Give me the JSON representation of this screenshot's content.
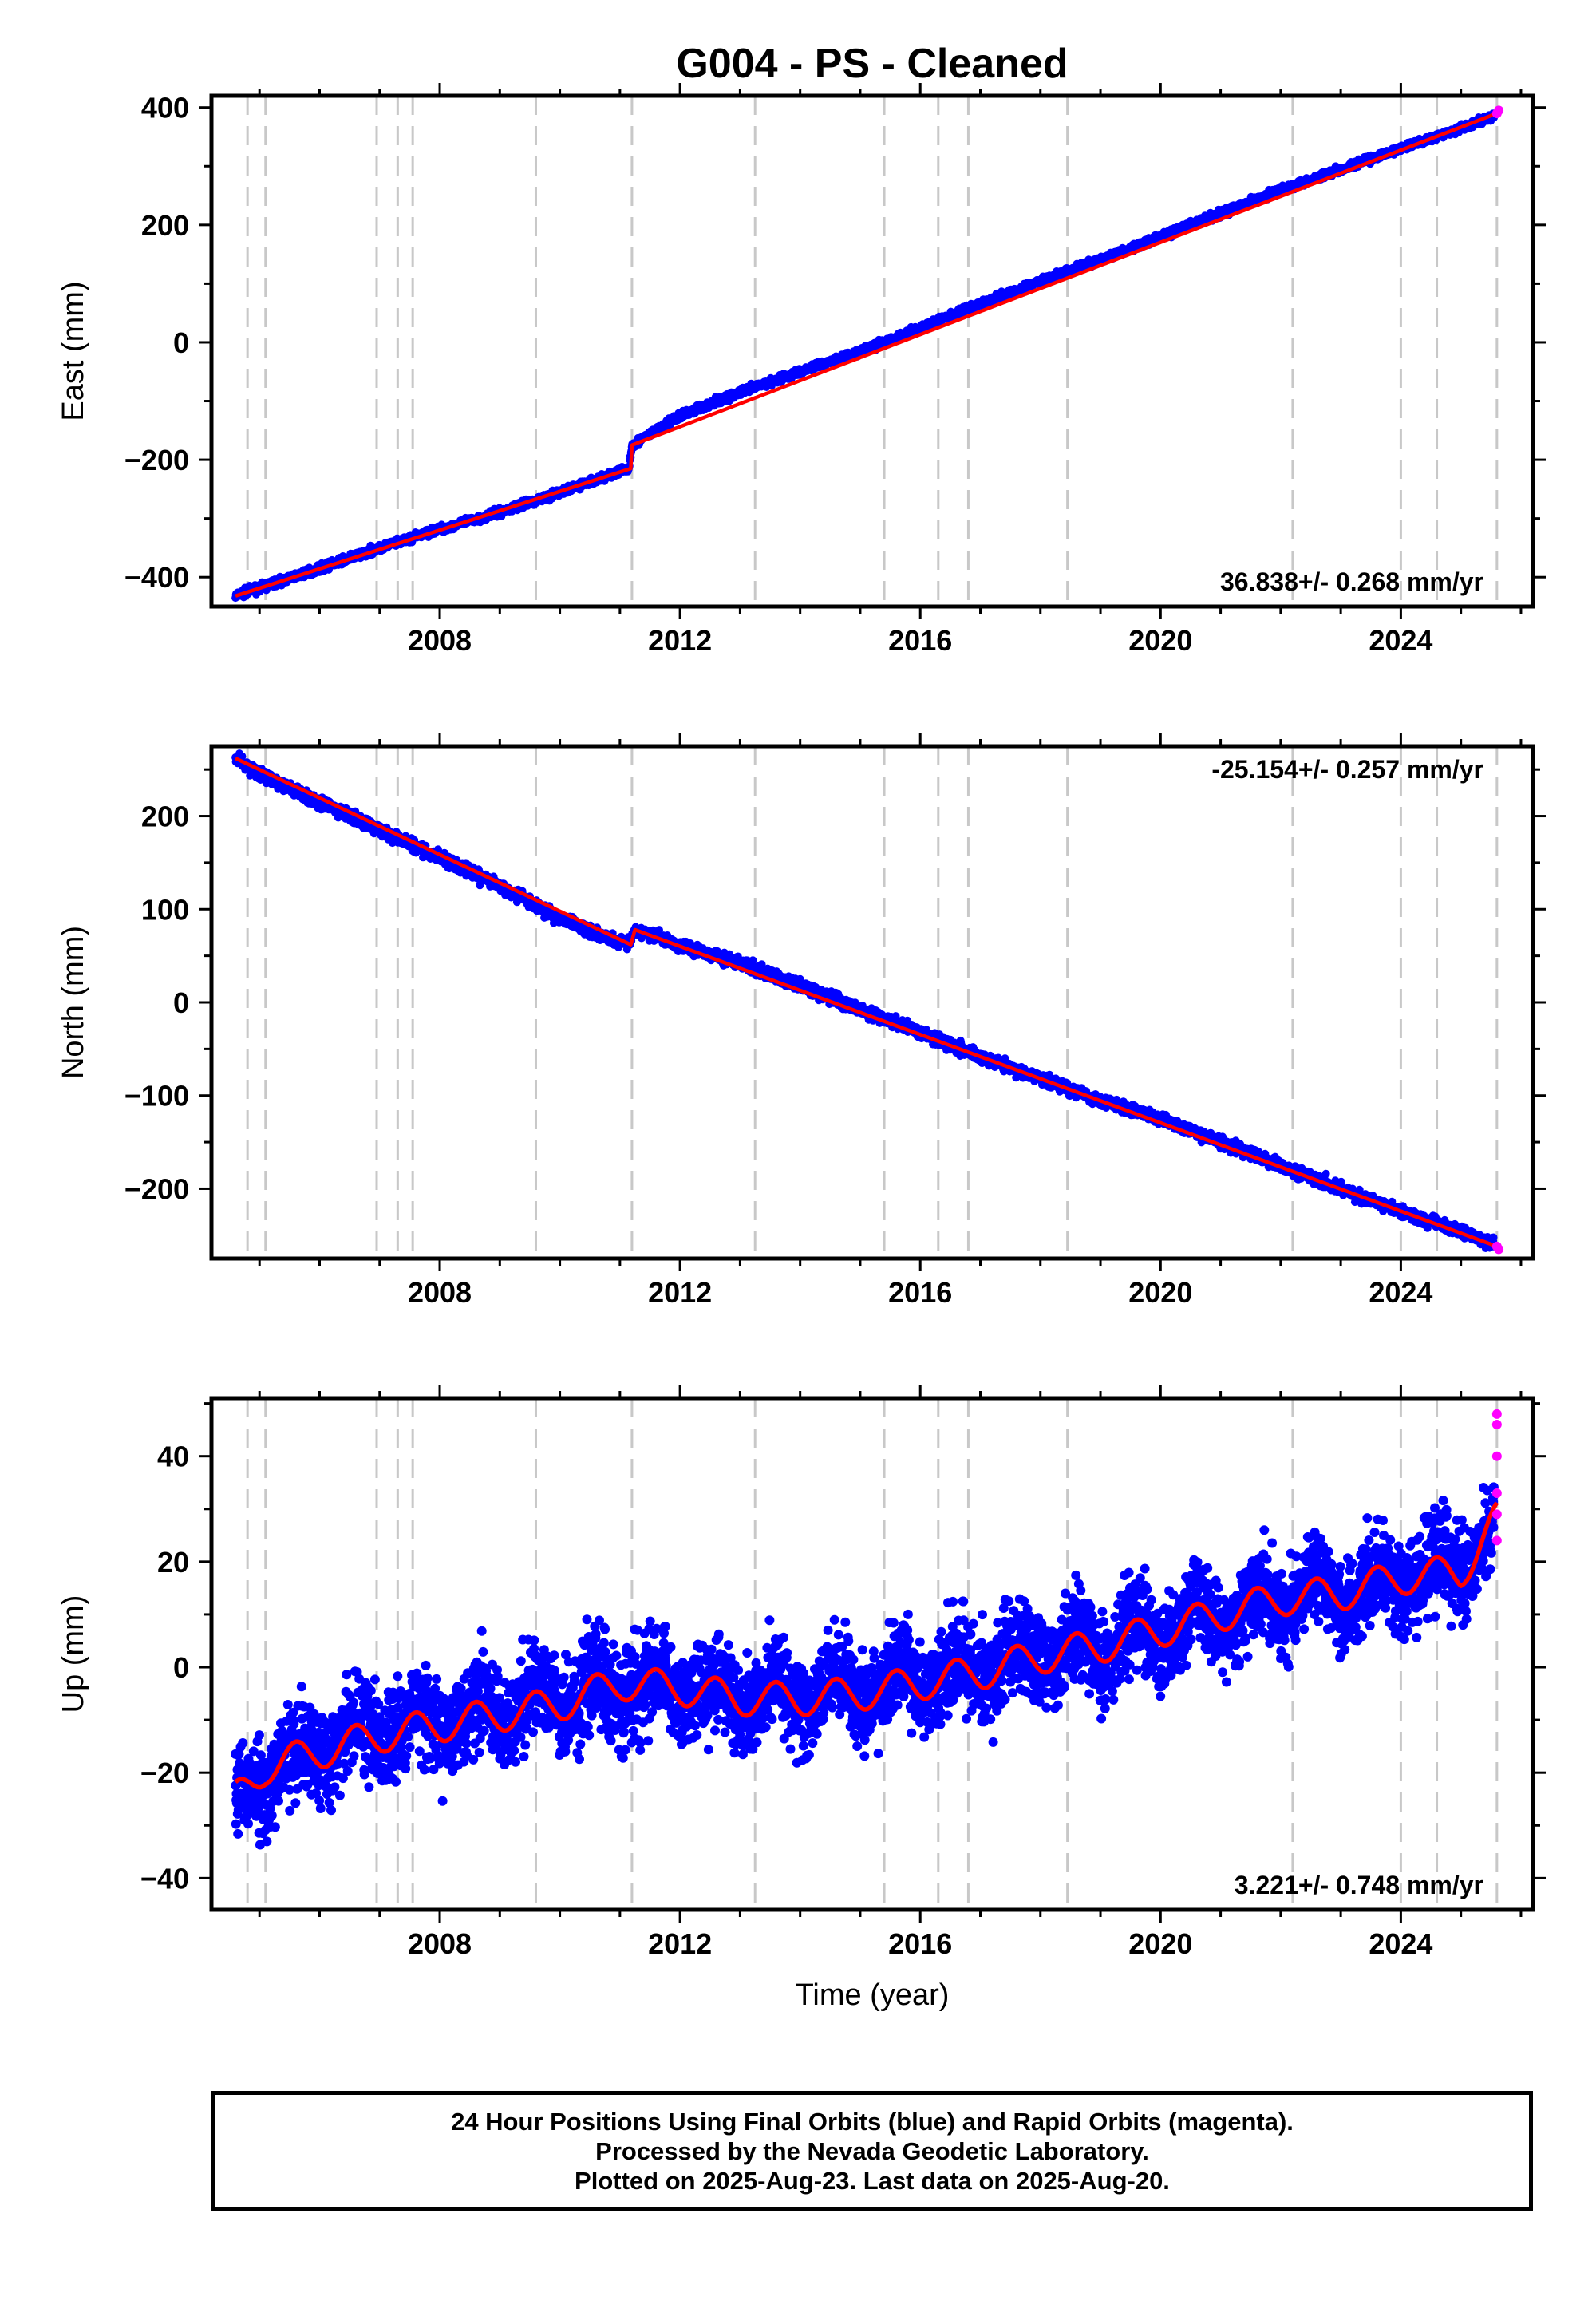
{
  "title": "G004  - PS - Cleaned",
  "xlabel": "Time (year)",
  "footer": {
    "line1": "24 Hour Positions Using Final Orbits (blue) and Rapid Orbits (magenta).",
    "line2": "Processed by the Nevada Geodetic Laboratory.",
    "line3": "Plotted on 2025-Aug-23. Last data on 2025-Aug-20."
  },
  "colors": {
    "final_orbits": "#0000ff",
    "rapid_orbits": "#ff00ff",
    "model_fit": "#ff0000",
    "equipment_change_lines": "#c8c8c8"
  },
  "chart_data": [
    {
      "type": "scatter",
      "panel": "east",
      "ylabel": "East (mm)",
      "xlim": [
        2004.2,
        2026.2
      ],
      "ylim": [
        -450,
        420
      ],
      "xticks": [
        2008,
        2012,
        2016,
        2020,
        2024
      ],
      "yticks": [
        -400,
        -200,
        0,
        200,
        400
      ],
      "rate_label": "36.838+/- 0.268 mm/yr",
      "rate_label_position": "bottom-right",
      "breaks": [
        2004.8,
        2005.1,
        2006.95,
        2007.3,
        2007.55,
        2009.6,
        2011.2,
        2013.25,
        2015.4,
        2016.3,
        2016.8,
        2018.45,
        2022.2,
        2024.0,
        2024.6,
        2025.6
      ],
      "series": [
        {
          "role": "final_orbits",
          "x": [
            2004.6,
            2005.0,
            2006.0,
            2007.0,
            2008.0,
            2009.0,
            2010.0,
            2011.15,
            2011.2,
            2012.0,
            2013.0,
            2014.0,
            2015.0,
            2016.0,
            2017.0,
            2018.0,
            2019.0,
            2020.0,
            2021.0,
            2022.0,
            2023.0,
            2024.0,
            2025.0,
            2025.55
          ],
          "y": [
            -432,
            -418,
            -385,
            -350,
            -318,
            -290,
            -255,
            -215,
            -175,
            -125,
            -85,
            -50,
            -15,
            25,
            65,
            105,
            140,
            180,
            220,
            260,
            295,
            330,
            365,
            385
          ]
        },
        {
          "role": "rapid_orbits",
          "x": [
            2025.6,
            2025.63
          ],
          "y": [
            390,
            395
          ]
        },
        {
          "role": "model_fit",
          "x": [
            2004.6,
            2011.18,
            2011.2,
            2025.6
          ],
          "y": [
            -432,
            -215,
            -175,
            390
          ]
        }
      ]
    },
    {
      "type": "scatter",
      "panel": "north",
      "ylabel": "North (mm)",
      "xlim": [
        2004.2,
        2026.2
      ],
      "ylim": [
        -275,
        275
      ],
      "xticks": [
        2008,
        2012,
        2016,
        2020,
        2024
      ],
      "yticks": [
        -200,
        -100,
        0,
        100,
        200
      ],
      "rate_label": "-25.154+/- 0.257 mm/yr",
      "rate_label_position": "top-right",
      "breaks": [
        2004.8,
        2005.1,
        2006.95,
        2007.3,
        2007.55,
        2009.6,
        2011.2,
        2013.25,
        2015.4,
        2016.3,
        2016.8,
        2018.45,
        2022.2,
        2024.0,
        2024.6,
        2025.6
      ],
      "series": [
        {
          "role": "final_orbits",
          "x": [
            2004.6,
            2005.0,
            2006.0,
            2007.0,
            2008.0,
            2009.0,
            2010.0,
            2011.15,
            2011.25,
            2012.0,
            2013.0,
            2014.0,
            2015.0,
            2016.0,
            2017.0,
            2018.0,
            2019.0,
            2020.0,
            2021.0,
            2022.0,
            2023.0,
            2024.0,
            2025.0,
            2025.55
          ],
          "y": [
            262,
            245,
            215,
            185,
            155,
            125,
            90,
            62,
            78,
            62,
            42,
            18,
            -8,
            -32,
            -58,
            -82,
            -105,
            -125,
            -150,
            -175,
            -200,
            -225,
            -245,
            -260
          ]
        },
        {
          "role": "rapid_orbits",
          "x": [
            2025.6,
            2025.63
          ],
          "y": [
            -262,
            -265
          ]
        },
        {
          "role": "model_fit",
          "x": [
            2004.6,
            2011.18,
            2011.25,
            2025.6
          ],
          "y": [
            262,
            62,
            78,
            -262
          ]
        }
      ]
    },
    {
      "type": "scatter",
      "panel": "up",
      "ylabel": "Up (mm)",
      "xlabel": "Time (year)",
      "xlim": [
        2004.2,
        2026.2
      ],
      "ylim": [
        -46,
        51
      ],
      "xticks": [
        2008,
        2012,
        2016,
        2020,
        2024
      ],
      "yticks": [
        -40,
        -20,
        0,
        20,
        40
      ],
      "rate_label": "3.221+/- 0.748 mm/yr",
      "rate_label_position": "bottom-right",
      "breaks": [
        2004.8,
        2005.1,
        2006.95,
        2007.3,
        2007.55,
        2009.6,
        2011.2,
        2013.25,
        2015.4,
        2016.3,
        2016.8,
        2018.45,
        2022.2,
        2024.0,
        2024.6,
        2025.6
      ],
      "series": [
        {
          "role": "final_orbits",
          "x": [
            2004.6,
            2005.1,
            2006.0,
            2007.0,
            2008.0,
            2009.0,
            2010.0,
            2011.0,
            2012.0,
            2013.0,
            2014.0,
            2015.0,
            2016.0,
            2017.0,
            2018.0,
            2019.0,
            2020.0,
            2021.0,
            2022.0,
            2023.0,
            2024.0,
            2025.0,
            2025.55
          ],
          "y": [
            -26,
            -20,
            -15,
            -12,
            -10,
            -8,
            -6,
            -3,
            -4,
            -6,
            -5,
            -4,
            -2,
            0,
            2,
            4,
            7,
            10,
            13,
            14,
            17,
            20,
            25
          ]
        },
        {
          "role": "rapid_orbits",
          "x": [
            2025.6,
            2025.6,
            2025.6,
            2025.6,
            2025.6,
            2025.6
          ],
          "y": [
            48,
            46,
            40,
            33,
            29,
            24
          ]
        },
        {
          "role": "model_fit",
          "x": [
            2004.6,
            2005.1,
            2006.0,
            2007.0,
            2008.0,
            2009.0,
            2010.0,
            2011.0,
            2012.0,
            2013.0,
            2014.0,
            2015.0,
            2016.0,
            2017.0,
            2018.0,
            2019.0,
            2020.0,
            2021.0,
            2022.0,
            2023.0,
            2024.0,
            2025.0,
            2025.6
          ],
          "y": [
            -25,
            -19,
            -16,
            -13,
            -11,
            -9,
            -7,
            -3,
            -4,
            -6,
            -6,
            -5,
            -3,
            -1,
            2,
            4,
            7,
            10,
            13,
            14,
            17,
            18,
            28
          ]
        }
      ]
    }
  ]
}
